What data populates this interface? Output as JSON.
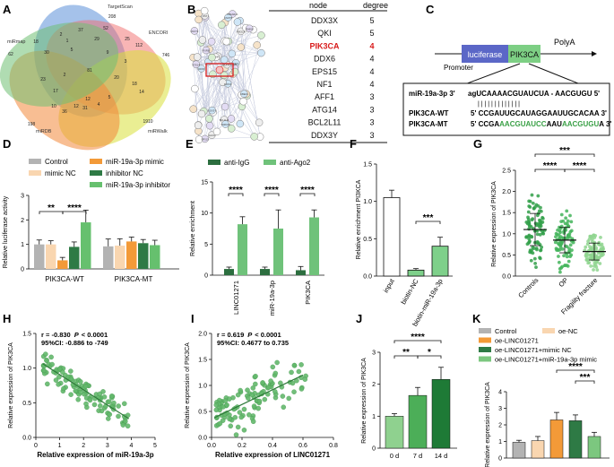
{
  "colors": {
    "control": "#b3b3b3",
    "mimic_nc": "#f9d6b0",
    "mimic": "#f39a38",
    "inhibitor_nc": "#2e7a45",
    "inhibitor": "#66c06e",
    "igg": "#2c6e3f",
    "ago2": "#6fc27a",
    "lightgreen": "#8fd18f",
    "darkgreen": "#1f7a3a",
    "midgreen": "#5cb85c",
    "red": "#d81b1b",
    "blue": "#5566c8"
  },
  "panel_labels": [
    "A",
    "B",
    "C",
    "D",
    "E",
    "F",
    "G",
    "H",
    "I",
    "J",
    "K"
  ],
  "venn": {
    "sets": [
      "TargetScan",
      "ENCORI",
      "miRWalk",
      "miRDB",
      "miRmap"
    ],
    "numbers": [
      "208",
      "746",
      "1910",
      "198",
      "18",
      "29",
      "30",
      "62",
      "52",
      "37",
      "2",
      "1",
      "12",
      "4",
      "31",
      "5",
      "10",
      "81",
      "20",
      "25",
      "18",
      "17",
      "14",
      "5",
      "9",
      "36",
      "112",
      "23",
      "2",
      "3",
      "12"
    ]
  },
  "ppi": {
    "nodes": [
      "DDX3X",
      "QKI",
      "PIK3CA",
      "DDX6",
      "EPS15",
      "NF1",
      "AFF1",
      "ATG14",
      "BCL2L11",
      "DDX3Y",
      "PRKAR1A",
      "AGO2",
      "TNRC6B",
      "CNOT4",
      "XIST",
      "CNOT6",
      "RAB5A",
      "NUFIP2",
      "UBE2A",
      "PURB"
    ]
  },
  "degree_table": {
    "headers": [
      "node",
      "degree"
    ],
    "rows": [
      [
        "DDX3X",
        "5"
      ],
      [
        "QKI",
        "5"
      ],
      [
        "PIK3CA",
        "4"
      ],
      [
        "DDX6",
        "4"
      ],
      [
        "EPS15",
        "4"
      ],
      [
        "NF1",
        "4"
      ],
      [
        "AFF1",
        "3"
      ],
      [
        "ATG14",
        "3"
      ],
      [
        "BCL2L11",
        "3"
      ],
      [
        "DDX3Y",
        "3"
      ]
    ],
    "highlight": "PIK3CA"
  },
  "construct": {
    "luciferase": "luciferase",
    "pik3ca": "PIK3CA",
    "polya": "PolyA",
    "promoter": "Promoter",
    "mir_label": "miR-19a-3p 3'",
    "mir_seq": "agUCAAAACGUAUCUA - AACGUGU 5'",
    "bars": "| | | | | |        | | | | | | |",
    "wt_label": "PIK3CA-WT",
    "wt_seq": "5' CCGAUUGCAUAGGAAUUGCACAA 3'",
    "mt_label": "PIK3CA-MT",
    "mt_pre": "5' CCGA",
    "mt_mut1": "AACGUAUCC",
    "mt_mid": "AAU",
    "mt_mut2": "AACGUGU",
    "mt_post": "A 3'"
  },
  "chart_data": [
    {
      "panel": "D",
      "type": "bar",
      "ylabel": "Relative luciferase activity",
      "ylim": [
        0,
        3
      ],
      "yticks": [
        "0",
        "1",
        "2",
        "3"
      ],
      "categories": [
        "PIK3CA-WT",
        "PIK3CA-MT"
      ],
      "legend": [
        "Control",
        "mimic NC",
        "miR-19a-3p mimic",
        "inhibitor NC",
        "miR-19a-3p inhibitor"
      ],
      "series": [
        {
          "name": "Control",
          "values": [
            1.0,
            0.92
          ]
        },
        {
          "name": "mimic NC",
          "values": [
            1.0,
            0.95
          ]
        },
        {
          "name": "miR-19a-3p mimic",
          "values": [
            0.35,
            1.12
          ]
        },
        {
          "name": "inhibitor NC",
          "values": [
            0.9,
            1.05
          ]
        },
        {
          "name": "miR-19a-3p inhibitor",
          "values": [
            1.9,
            0.97
          ]
        }
      ],
      "errors": [
        [
          0.18,
          0.3
        ],
        [
          0.15,
          0.28
        ],
        [
          0.12,
          0.18
        ],
        [
          0.2,
          0.15
        ],
        [
          0.5,
          0.2
        ]
      ],
      "significance": [
        "**",
        "****"
      ]
    },
    {
      "panel": "E",
      "type": "bar",
      "ylabel": "Relative enrichment",
      "ylim": [
        0,
        15
      ],
      "yticks": [
        "0",
        "5",
        "10",
        "15"
      ],
      "categories": [
        "LINC01271",
        "miR-19a-3p",
        "PIK3CA"
      ],
      "legend": [
        "anti-IgG",
        "anti-Ago2"
      ],
      "series": [
        {
          "name": "anti-IgG",
          "values": [
            1.0,
            1.0,
            0.8
          ]
        },
        {
          "name": "anti-Ago2",
          "values": [
            8.2,
            7.5,
            9.3
          ]
        }
      ],
      "errors": [
        [
          0.3,
          0.3,
          0.6
        ],
        [
          1.2,
          3.0,
          1.2
        ]
      ],
      "significance": [
        "****",
        "****",
        "****"
      ]
    },
    {
      "panel": "F",
      "type": "bar",
      "ylabel": "Relative enrichment PI3KCA",
      "ylim": [
        0,
        1.5
      ],
      "yticks": [
        "0.0",
        "0.5",
        "1.0",
        "1.5"
      ],
      "categories": [
        "input",
        "biotin-NC",
        "biotin-miR-19a-3p"
      ],
      "values": [
        1.05,
        0.08,
        0.4
      ],
      "errors": [
        0.1,
        0.02,
        0.12
      ],
      "significance": [
        "***"
      ]
    },
    {
      "panel": "G",
      "type": "scatter",
      "ylabel": "Relative expression of PIK3CA",
      "ylim": [
        0,
        2.5
      ],
      "yticks": [
        "0.0",
        "0.5",
        "1.0",
        "1.5",
        "2.0",
        "2.5"
      ],
      "categories": [
        "Controls",
        "OP",
        "Fragility fracture"
      ],
      "means": [
        1.1,
        0.85,
        0.58
      ],
      "sd": [
        0.38,
        0.3,
        0.2
      ],
      "significance": [
        "***",
        "****",
        "****"
      ]
    },
    {
      "panel": "H",
      "type": "scatter",
      "xlabel": "Relative expression of miR-19a-3p",
      "ylabel": "Relative expression of PIK3CA",
      "xlim": [
        0,
        5
      ],
      "ylim": [
        0,
        1.5
      ],
      "xticks": [
        "0",
        "1",
        "2",
        "3",
        "4",
        "5"
      ],
      "yticks": [
        "0.0",
        "0.5",
        "1.0",
        "1.5"
      ],
      "stat1": "r = -0.830",
      "stat_p": "P",
      "stat_tail": "< 0.0001",
      "stat2": "95%CI: -0.886 to -749"
    },
    {
      "panel": "I",
      "type": "scatter",
      "xlabel": "Relative expression of LINC01271",
      "ylabel": "Relative expression of PIK3CA",
      "xlim": [
        0,
        0.8
      ],
      "ylim": [
        0,
        2.0
      ],
      "xticks": [
        "0.0",
        "0.2",
        "0.4",
        "0.6",
        "0.8"
      ],
      "yticks": [
        "0.0",
        "0.5",
        "1.0",
        "1.5",
        "2.0"
      ],
      "stat1": "r = 0.619",
      "stat_p": "P",
      "stat_tail": "< 0.0001",
      "stat2": "95%CI: 0.4677 to 0.735"
    },
    {
      "panel": "J",
      "type": "bar",
      "ylabel": "Relative expression of PIK3CA",
      "ylim": [
        0,
        3
      ],
      "yticks": [
        "0",
        "1",
        "2",
        "3"
      ],
      "categories": [
        "0 d",
        "7 d",
        "14 d"
      ],
      "values": [
        1.0,
        1.65,
        2.15
      ],
      "errors": [
        0.08,
        0.25,
        0.38
      ],
      "significance": [
        "****",
        "**",
        "*"
      ]
    },
    {
      "panel": "K",
      "type": "bar",
      "ylabel": "Relative expression of PIK3CA",
      "ylim": [
        0,
        4
      ],
      "yticks": [
        "0",
        "1",
        "2",
        "3",
        "4"
      ],
      "categories": [
        "Control",
        "oe-NC",
        "oe-LINC01271",
        "oe-LINC01271+mimic NC",
        "oe-LINC01271+miR-19a-3p mimic"
      ],
      "legend": [
        "Control",
        "oe-NC",
        "oe-LINC01271",
        "oe-LINC01271+mimic NC",
        "oe-LINC01271+miR-19a-3p mimic"
      ],
      "values": [
        0.95,
        1.05,
        2.3,
        2.25,
        1.3
      ],
      "errors": [
        0.12,
        0.25,
        0.45,
        0.35,
        0.25
      ],
      "significance": [
        "****",
        "***"
      ]
    }
  ]
}
